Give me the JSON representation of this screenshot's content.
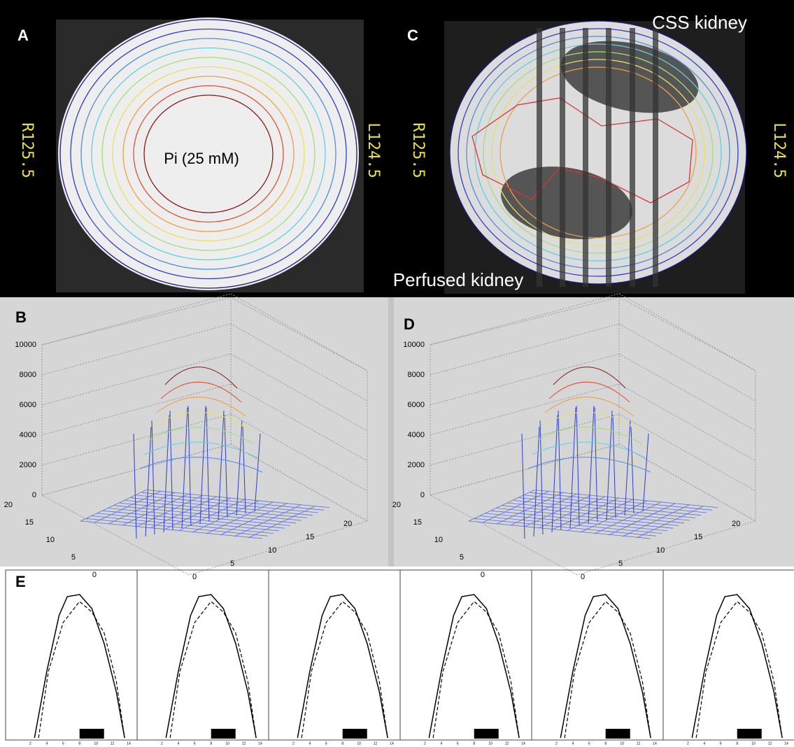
{
  "panels": {
    "a": {
      "label": "A",
      "left_label": "R125.5",
      "right_label": "L124.5",
      "annotation": "Pi (25 mM)"
    },
    "c": {
      "label": "C",
      "left_label": "R125.5",
      "right_label": "L124.5",
      "title": "CSS kidney",
      "caption": "Perfused kidney"
    },
    "b": {
      "label": "B",
      "z_ticks": [
        0,
        2000,
        4000,
        6000,
        8000,
        10000
      ],
      "x_ticks": [
        0,
        5,
        10,
        15,
        20
      ],
      "y_ticks": [
        0,
        5,
        10,
        15,
        20
      ]
    },
    "d": {
      "label": "D",
      "z_ticks": [
        0,
        2000,
        4000,
        6000,
        8000,
        10000
      ],
      "x_ticks": [
        0,
        5,
        10,
        15,
        20
      ],
      "y_ticks": [
        0,
        5,
        10,
        15,
        20
      ]
    },
    "e": {
      "label": "E",
      "x_ticks": [
        2,
        4,
        6,
        8,
        10,
        12,
        14
      ]
    }
  }
}
